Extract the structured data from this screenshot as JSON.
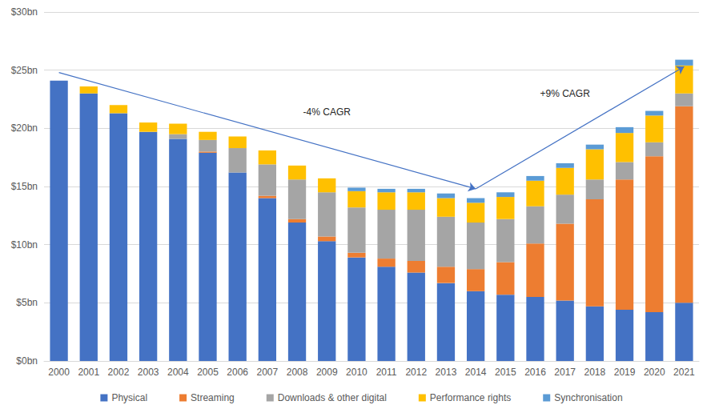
{
  "chart_data": {
    "type": "bar",
    "stacked": true,
    "grid": true,
    "legend": "bottom",
    "categories": [
      "2000",
      "2001",
      "2002",
      "2003",
      "2004",
      "2005",
      "2006",
      "2007",
      "2008",
      "2009",
      "2010",
      "2011",
      "2012",
      "2013",
      "2014",
      "2015",
      "2016",
      "2017",
      "2018",
      "2019",
      "2020",
      "2021"
    ],
    "series": [
      {
        "name": "Physical",
        "color": "#4472c4",
        "values": [
          24.1,
          23.0,
          21.3,
          19.7,
          19.1,
          17.9,
          16.2,
          14.0,
          11.9,
          10.3,
          8.9,
          8.1,
          7.6,
          6.7,
          6.0,
          5.7,
          5.5,
          5.2,
          4.7,
          4.4,
          4.2,
          5.0
        ]
      },
      {
        "name": "Streaming",
        "color": "#ed7d31",
        "values": [
          0,
          0,
          0,
          0,
          0,
          0.1,
          0,
          0.2,
          0.3,
          0.4,
          0.4,
          0.7,
          1.0,
          1.4,
          1.9,
          2.8,
          4.6,
          6.6,
          9.2,
          11.2,
          13.4,
          16.9
        ]
      },
      {
        "name": "Downloads & other digital",
        "color": "#a5a5a5",
        "values": [
          0,
          0,
          0,
          0,
          0.4,
          1.0,
          2.1,
          2.7,
          3.4,
          3.8,
          3.9,
          4.2,
          4.4,
          4.3,
          4.0,
          3.7,
          3.2,
          2.5,
          1.7,
          1.5,
          1.2,
          1.1
        ]
      },
      {
        "name": "Performance rights",
        "color": "#ffc000",
        "values": [
          0,
          0.6,
          0.7,
          0.8,
          0.9,
          0.7,
          1.0,
          1.2,
          1.2,
          1.2,
          1.4,
          1.5,
          1.5,
          1.6,
          1.7,
          1.9,
          2.2,
          2.3,
          2.6,
          2.5,
          2.3,
          2.4
        ]
      },
      {
        "name": "Synchronisation",
        "color": "#5b9bd5",
        "values": [
          0,
          0,
          0,
          0,
          0,
          0,
          0,
          0,
          0,
          0,
          0.3,
          0.3,
          0.3,
          0.4,
          0.4,
          0.4,
          0.4,
          0.4,
          0.4,
          0.5,
          0.4,
          0.5
        ]
      }
    ],
    "ylim": [
      0,
      30
    ],
    "yticks": [
      {
        "value": 0,
        "label": "$0bn"
      },
      {
        "value": 5,
        "label": "$5bn"
      },
      {
        "value": 10,
        "label": "$10bn"
      },
      {
        "value": 15,
        "label": "$15bn"
      },
      {
        "value": 20,
        "label": "$20bn"
      },
      {
        "value": 25,
        "label": "$25bn"
      },
      {
        "value": 30,
        "label": "$30bn"
      }
    ],
    "annotations": [
      {
        "text": "-4% CAGR",
        "x": "2009",
        "y": 21.4,
        "arrow": {
          "from": [
            "2000",
            24.8
          ],
          "to": [
            "2014",
            14.8
          ]
        }
      },
      {
        "text": "+9% CAGR",
        "x": "2017",
        "y": 23.0,
        "arrow": {
          "from": [
            "2014",
            14.8
          ],
          "to": [
            "2021",
            25.3
          ]
        }
      }
    ]
  }
}
